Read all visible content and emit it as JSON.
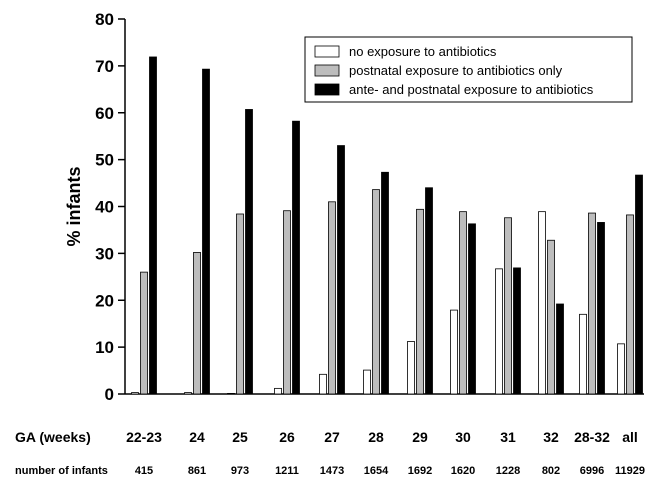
{
  "chart_data": {
    "type": "bar",
    "ylabel": "% infants",
    "ylim": [
      0,
      80
    ],
    "yticks": [
      0,
      10,
      20,
      30,
      40,
      50,
      60,
      70,
      80
    ],
    "grid": false,
    "legend_position": "top-right",
    "categories": [
      "22-23",
      "24",
      "25",
      "26",
      "27",
      "28",
      "29",
      "30",
      "31",
      "32",
      "28-32",
      "all"
    ],
    "series": [
      {
        "name": "no exposure to antibiotics",
        "color": "#ffffff",
        "values": [
          0.3,
          0.3,
          0,
          1.2,
          4.2,
          5.1,
          11.2,
          17.9,
          26.7,
          38.9,
          17,
          10.7
        ]
      },
      {
        "name": "postnatal exposure to antibiotics only",
        "color": "#bdbdbd",
        "values": [
          26,
          30.2,
          38.4,
          39.1,
          41,
          43.6,
          39.4,
          38.9,
          37.6,
          32.8,
          38.6,
          38.2
        ]
      },
      {
        "name": "ante- and postnatal exposure to antibiotics",
        "color": "#000000",
        "values": [
          71.9,
          69.3,
          60.7,
          58.2,
          53,
          47.3,
          44,
          36.3,
          26.9,
          19.2,
          36.6,
          46.7
        ]
      }
    ],
    "row_ga_label": "GA (weeks)",
    "row_n_label": "number of infants",
    "n_infants": [
      "415",
      "861",
      "973",
      "1211",
      "1473",
      "1654",
      "1692",
      "1620",
      "1228",
      "802",
      "6996",
      "11929"
    ]
  }
}
